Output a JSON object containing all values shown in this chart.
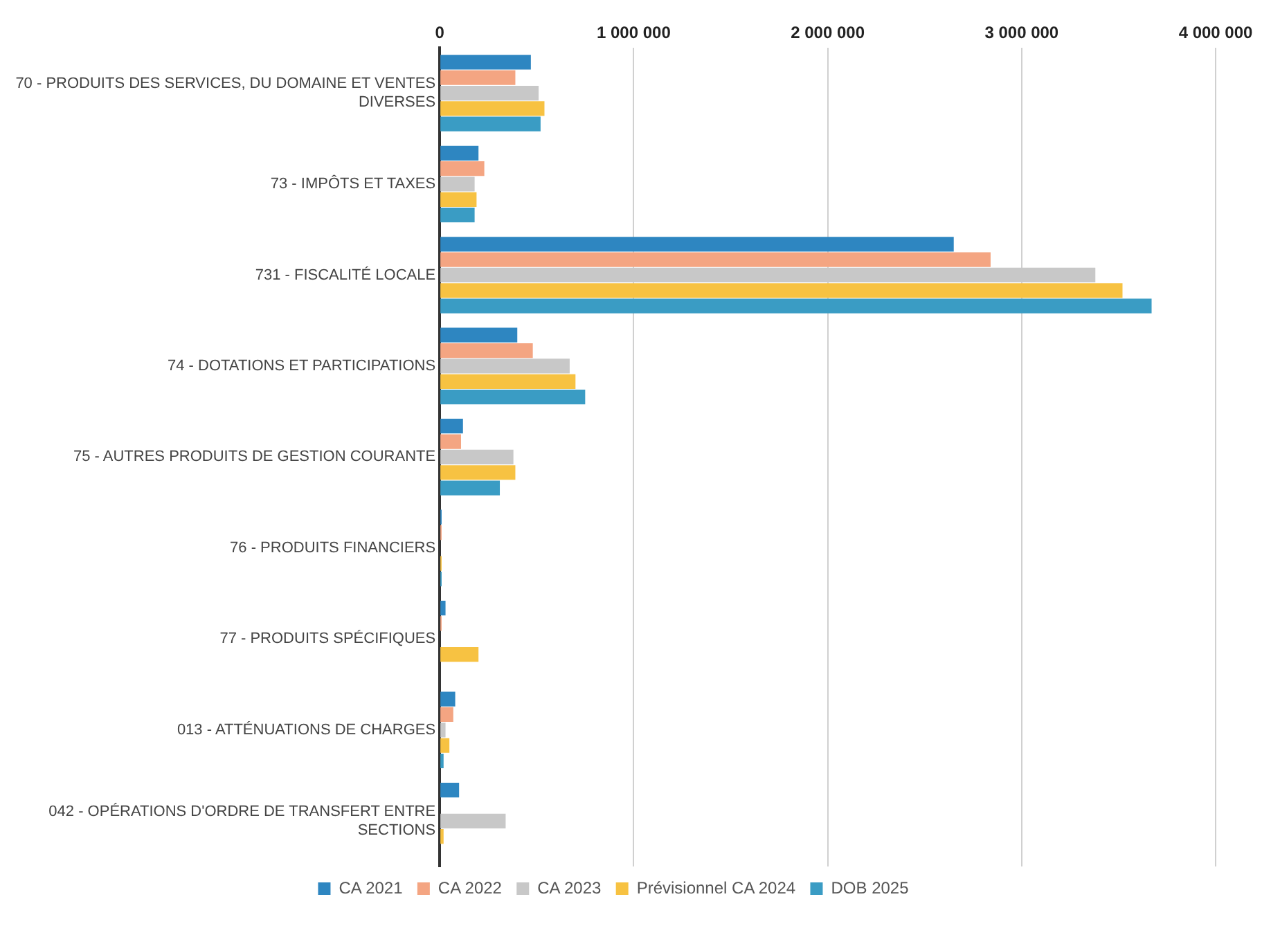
{
  "chart_data": {
    "type": "bar",
    "orientation": "horizontal",
    "categories": [
      "70 - PRODUITS DES SERVICES, DU DOMAINE ET VENTES DIVERSES",
      "73 - IMPÔTS ET TAXES",
      "731 - FISCALITÉ LOCALE",
      "74 - DOTATIONS ET PARTICIPATIONS",
      "75 - AUTRES PRODUITS DE GESTION COURANTE",
      "76 - PRODUITS FINANCIERS",
      "77 - PRODUITS SPÉCIFIQUES",
      "013 - ATTÉNUATIONS DE CHARGES",
      "042 - OPÉRATIONS D'ORDRE DE TRANSFERT ENTRE SECTIONS"
    ],
    "series": [
      {
        "name": "CA 2021",
        "color": "#2e86c1",
        "values": [
          470000,
          200000,
          2650000,
          400000,
          120000,
          10000,
          30000,
          80000,
          100000
        ]
      },
      {
        "name": "CA 2022",
        "color": "#f4a582",
        "values": [
          390000,
          230000,
          2840000,
          480000,
          110000,
          10000,
          10000,
          70000,
          0
        ]
      },
      {
        "name": "CA 2023",
        "color": "#c8c8c8",
        "values": [
          510000,
          180000,
          3380000,
          670000,
          380000,
          null,
          null,
          30000,
          340000
        ]
      },
      {
        "name": "Prévisionnel CA 2024",
        "color": "#f7c242",
        "values": [
          540000,
          190000,
          3520000,
          700000,
          390000,
          10000,
          200000,
          50000,
          20000
        ]
      },
      {
        "name": "DOB 2025",
        "color": "#3a9cc4",
        "values": [
          520000,
          180000,
          3670000,
          750000,
          310000,
          10000,
          0,
          20000,
          0
        ]
      }
    ],
    "xlim": [
      0,
      4000000
    ],
    "xticks": [
      0,
      {
        "value": 1000000,
        "label": "1 000 000"
      },
      {
        "value": 2000000,
        "label": "2 000 000"
      },
      {
        "value": 3000000,
        "label": "3 000 000"
      },
      {
        "value": 4000000,
        "label": "4 000 000"
      }
    ],
    "grid": "x",
    "legend": "bottom"
  }
}
